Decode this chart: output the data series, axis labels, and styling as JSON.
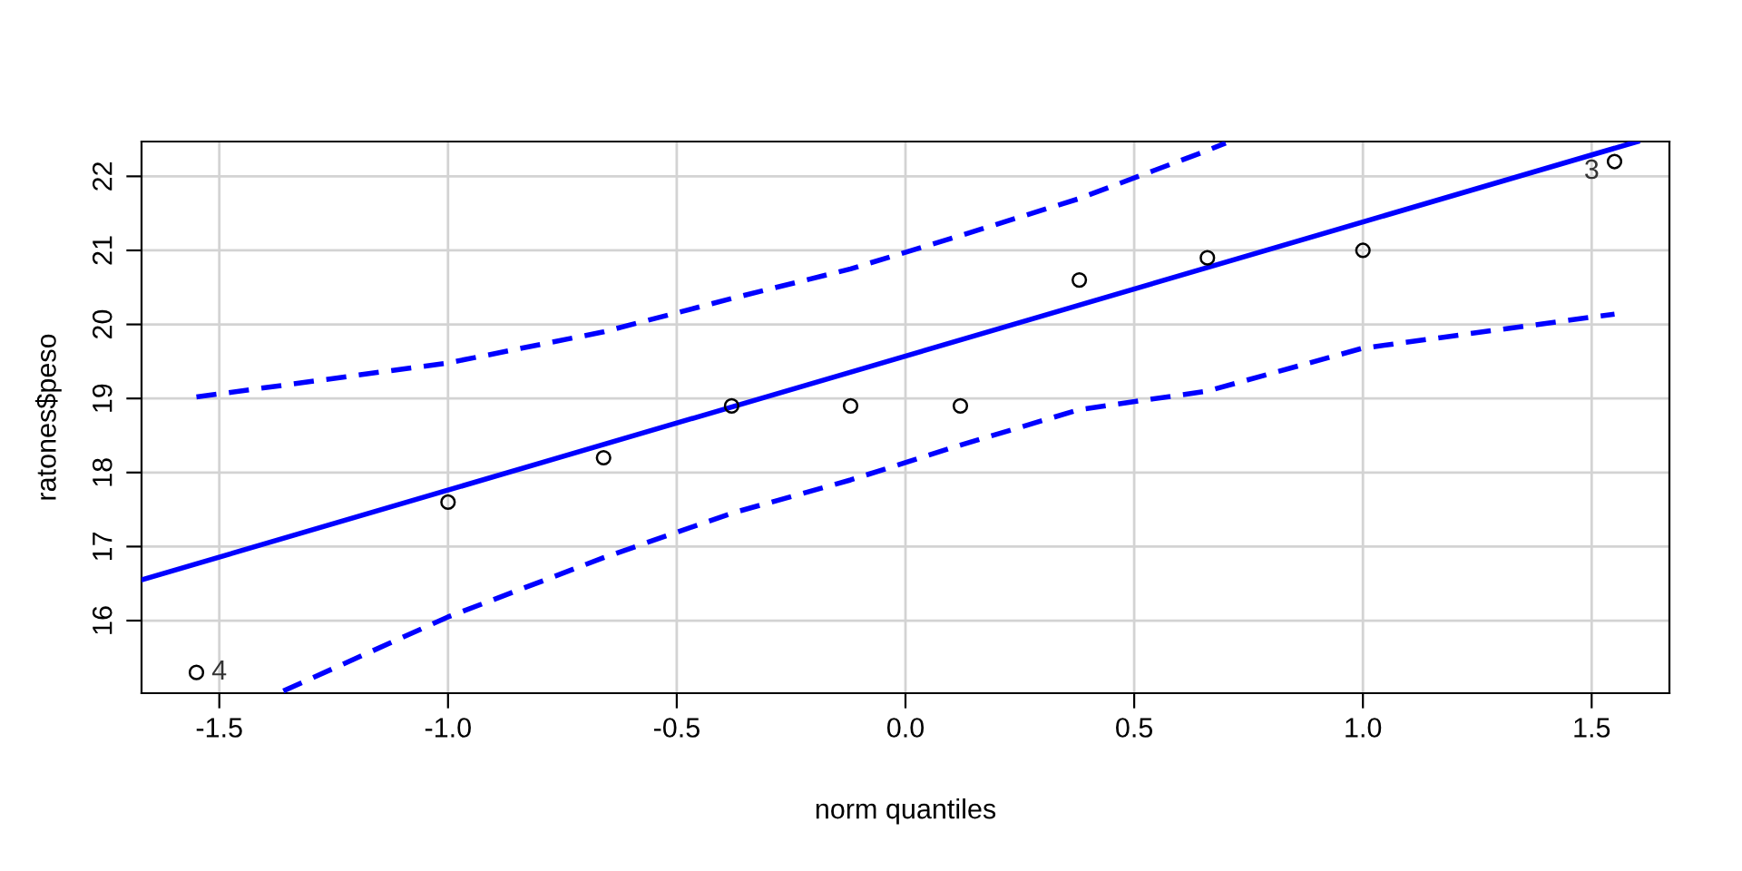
{
  "chart_data": {
    "type": "scatter",
    "xlabel": "norm quantiles",
    "ylabel": "ratones$peso",
    "xlim": [
      -1.67,
      1.67
    ],
    "ylim": [
      15.02,
      22.47
    ],
    "xticks": [
      -1.5,
      {
        "value": -1.0,
        "label": "-1.0"
      },
      -0.5,
      {
        "value": 0.0,
        "label": "0.0"
      },
      0.5,
      {
        "value": 1.0,
        "label": "1.0"
      },
      1.5
    ],
    "yticks": [
      16,
      17,
      18,
      19,
      20,
      21,
      22
    ],
    "grid": true,
    "series": [
      {
        "type": "line",
        "color": "#0000ff",
        "line_style": "solid",
        "marker": "none",
        "x": [
          -1.67,
          1.6
        ],
        "values": [
          16.55,
          22.47
        ]
      },
      {
        "type": "line",
        "color": "#0000ff",
        "line_style": "dashed",
        "marker": "none",
        "x": [
          -1.55,
          -1.0,
          -0.66,
          -0.38,
          -0.12,
          0.12,
          0.38,
          0.66,
          0.7
        ],
        "values": [
          19.02,
          19.48,
          19.9,
          20.35,
          20.75,
          21.2,
          21.7,
          22.35,
          22.45
        ]
      },
      {
        "type": "line",
        "color": "#0000ff",
        "line_style": "dashed",
        "marker": "none",
        "x": [
          -1.36,
          -1.0,
          -0.66,
          -0.38,
          -0.12,
          0.12,
          0.38,
          0.66,
          1.0,
          1.55
        ],
        "values": [
          15.05,
          16.05,
          16.85,
          17.45,
          17.9,
          18.37,
          18.85,
          19.1,
          19.68,
          20.14
        ]
      },
      {
        "color": "#000000",
        "marker": "circle",
        "x": [
          -1.55,
          -1.0,
          -0.66,
          -0.38,
          -0.12,
          0.12,
          0.38,
          0.66,
          1.0,
          1.55
        ],
        "values": [
          15.3,
          17.6,
          18.2,
          18.9,
          18.9,
          18.9,
          20.6,
          20.9,
          21.0,
          22.2
        ]
      }
    ],
    "annotations": [
      {
        "text": "4",
        "x": -1.55,
        "y": 15.3
      },
      {
        "text": "3",
        "x": 1.55,
        "y": 22.2
      }
    ]
  }
}
